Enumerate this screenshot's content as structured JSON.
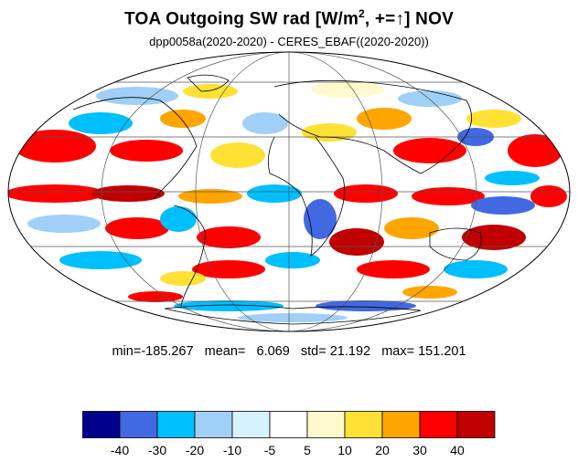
{
  "title": {
    "main": "TOA Outgoing SW rad [W/m",
    "sup": "2",
    "suffix": ", +=↑] NOV"
  },
  "subtitle": "dpp0058a(2020-2020) - CERES_EBAF((2020-2020))",
  "stats": {
    "min_label": "min=",
    "min": "-185.267",
    "mean_label": "mean=",
    "mean": "6.069",
    "std_label": "std=",
    "std": "21.192",
    "max_label": "max=",
    "max": "151.201"
  },
  "colorbar": {
    "colors": [
      "#00008b",
      "#4169e1",
      "#00bfff",
      "#a0d0f8",
      "#d6f2ff",
      "#ffffff",
      "#fffacd",
      "#ffe135",
      "#ffa500",
      "#ff0000",
      "#c00000"
    ],
    "labels": [
      "-40",
      "-30",
      "-20",
      "-10",
      "-5",
      "5",
      "10",
      "20",
      "30",
      "40"
    ]
  },
  "map": {
    "projection": "mollweide",
    "graticule": true,
    "coastlines": true
  }
}
